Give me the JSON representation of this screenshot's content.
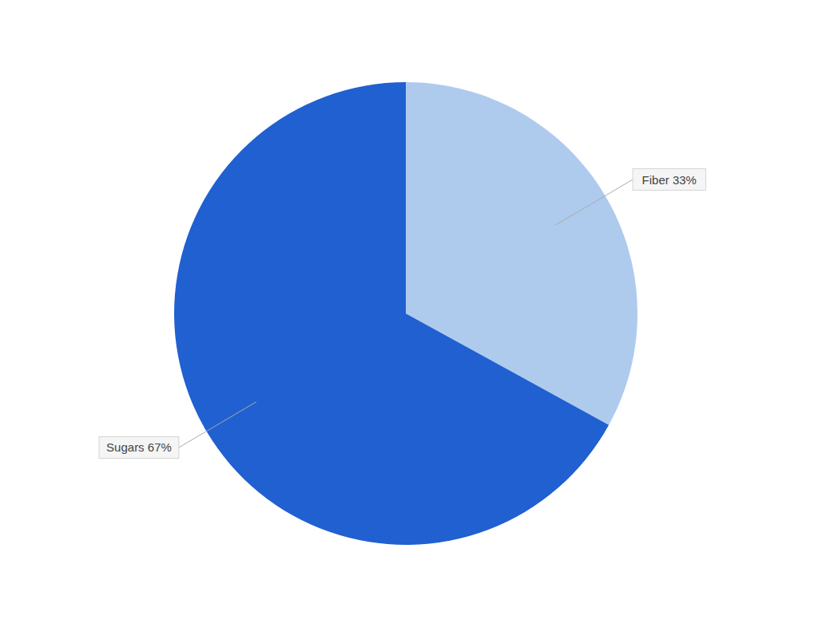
{
  "chart_data": {
    "type": "pie",
    "categories": [
      "Fiber 33%",
      "Sugars 67%"
    ],
    "values": [
      33,
      67
    ],
    "colors": [
      "#aecbee",
      "#2060d0"
    ]
  }
}
